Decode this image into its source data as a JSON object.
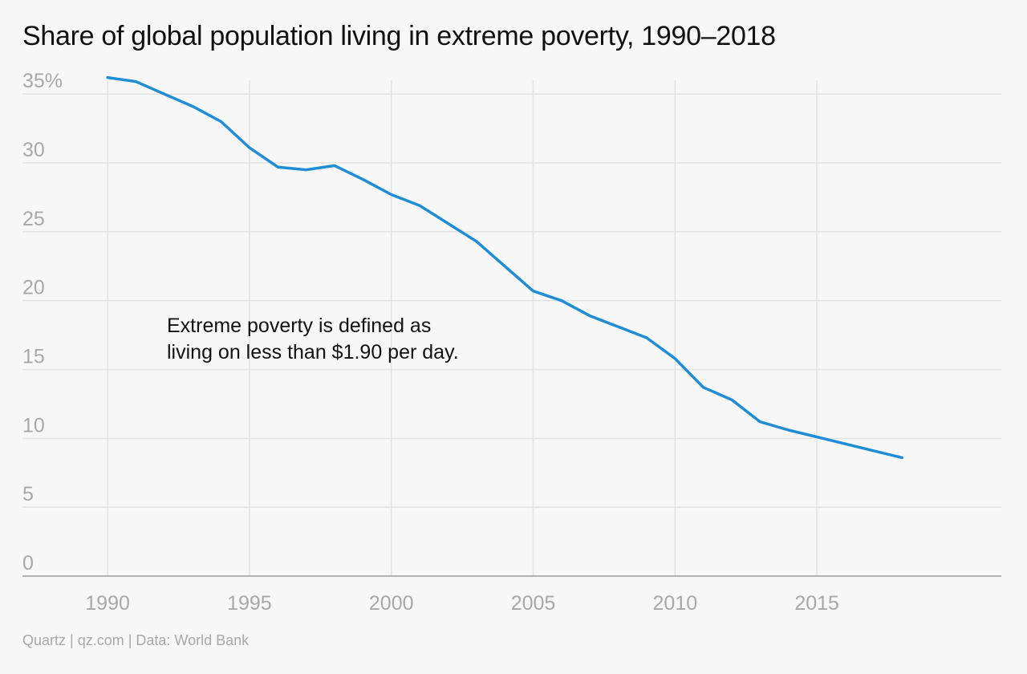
{
  "chart_data": {
    "type": "line",
    "title": "Share of global population living in extreme poverty, 1990–2018",
    "xlabel": "",
    "ylabel": "",
    "xlim": [
      1987,
      2021.5
    ],
    "ylim": [
      0,
      36
    ],
    "x_ticks": [
      {
        "value": 1990,
        "label": "1990"
      },
      {
        "value": 1995,
        "label": "1995"
      },
      {
        "value": 2000,
        "label": "2000"
      },
      {
        "value": 2005,
        "label": "2005"
      },
      {
        "value": 2010,
        "label": "2010"
      },
      {
        "value": 2015,
        "label": "2015"
      }
    ],
    "y_ticks": [
      {
        "value": 0,
        "label": "0"
      },
      {
        "value": 5,
        "label": "5"
      },
      {
        "value": 10,
        "label": "10"
      },
      {
        "value": 15,
        "label": "15"
      },
      {
        "value": 20,
        "label": "20"
      },
      {
        "value": 25,
        "label": "25"
      },
      {
        "value": 30,
        "label": "30"
      },
      {
        "value": 35,
        "label": "35%"
      }
    ],
    "grid": true,
    "legend": "none",
    "series": [
      {
        "color": "#1f8dd6",
        "x": [
          1990,
          1991,
          1992,
          1993,
          1994,
          1995,
          1996,
          1997,
          1998,
          1999,
          2000,
          2001,
          2002,
          2003,
          2004,
          2005,
          2006,
          2007,
          2008,
          2009,
          2010,
          2011,
          2012,
          2013,
          2014,
          2015,
          2016,
          2017,
          2018
        ],
        "values": [
          36.2,
          35.9,
          35.0,
          34.1,
          33.0,
          31.1,
          29.7,
          29.5,
          29.8,
          28.8,
          27.7,
          26.9,
          25.6,
          24.3,
          22.5,
          20.7,
          20.0,
          18.9,
          18.1,
          17.3,
          15.8,
          13.7,
          12.8,
          11.2,
          10.6,
          10.1,
          9.6,
          9.1,
          8.6
        ]
      }
    ],
    "annotations": [
      {
        "lines": [
          "Extreme poverty is defined as",
          "living on less than $1.90 per day."
        ]
      }
    ],
    "source": "Quartz | qz.com | Data: World Bank"
  }
}
